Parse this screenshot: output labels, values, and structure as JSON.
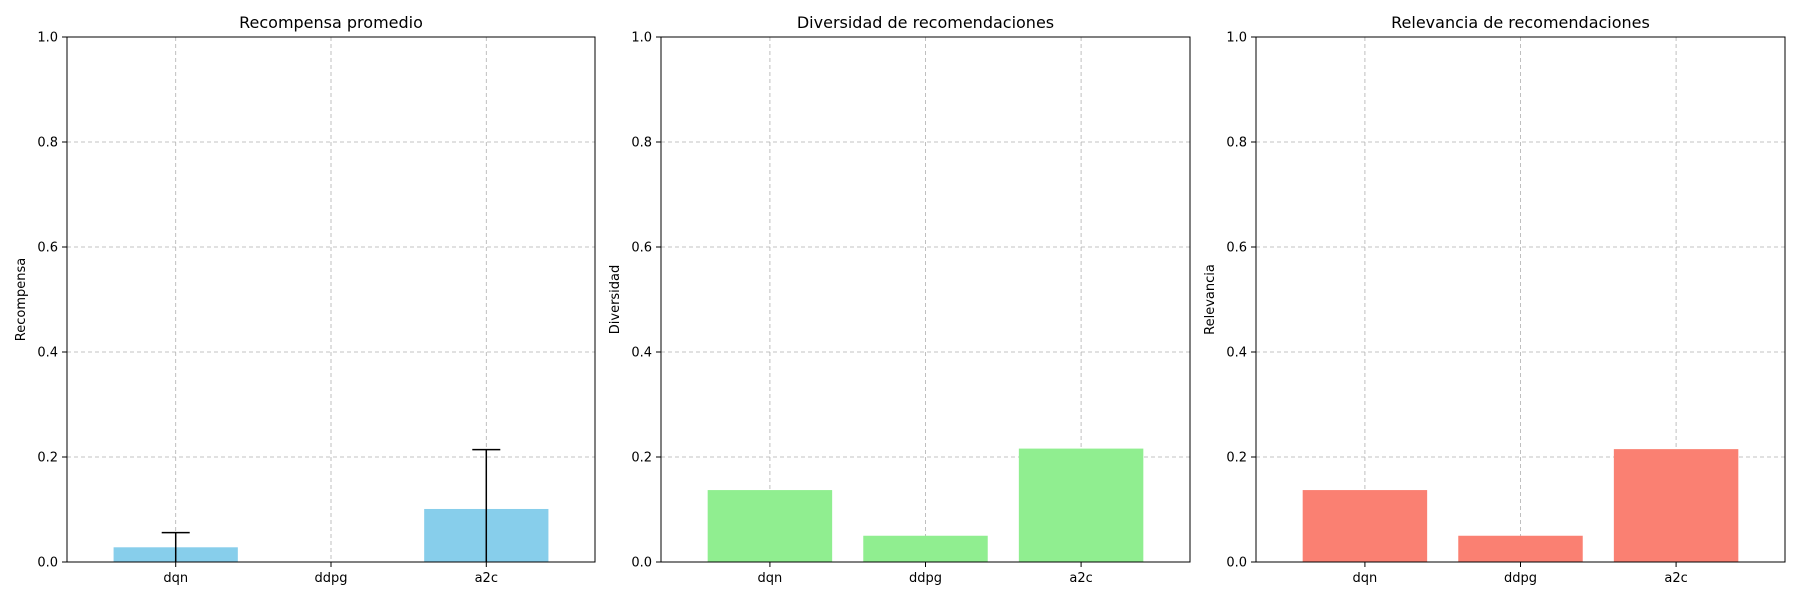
{
  "chart_data": [
    {
      "type": "bar",
      "title": "Recompensa promedio",
      "xlabel": "",
      "ylabel": "Recompensa",
      "categories": [
        "dqn",
        "ddpg",
        "a2c"
      ],
      "values": [
        0.028,
        0.0,
        0.101
      ],
      "errors": [
        0.028,
        0.0,
        0.113
      ],
      "ylim": [
        0,
        1
      ],
      "yticks": [
        "0.0",
        "0.2",
        "0.4",
        "0.6",
        "0.8",
        "1.0"
      ],
      "grid": true,
      "color": "#87ceeb"
    },
    {
      "type": "bar",
      "title": "Diversidad de recomendaciones",
      "xlabel": "",
      "ylabel": "Diversidad",
      "categories": [
        "dqn",
        "ddpg",
        "a2c"
      ],
      "values": [
        0.137,
        0.05,
        0.216
      ],
      "ylim": [
        0,
        1
      ],
      "yticks": [
        "0.0",
        "0.2",
        "0.4",
        "0.6",
        "0.8",
        "1.0"
      ],
      "grid": true,
      "color": "#90ee90"
    },
    {
      "type": "bar",
      "title": "Relevancia de recomendaciones",
      "xlabel": "",
      "ylabel": "Relevancia",
      "categories": [
        "dqn",
        "ddpg",
        "a2c"
      ],
      "values": [
        0.137,
        0.05,
        0.215
      ],
      "ylim": [
        0,
        1
      ],
      "yticks": [
        "0.0",
        "0.2",
        "0.4",
        "0.6",
        "0.8",
        "1.0"
      ],
      "grid": true,
      "color": "#fa8072"
    }
  ]
}
